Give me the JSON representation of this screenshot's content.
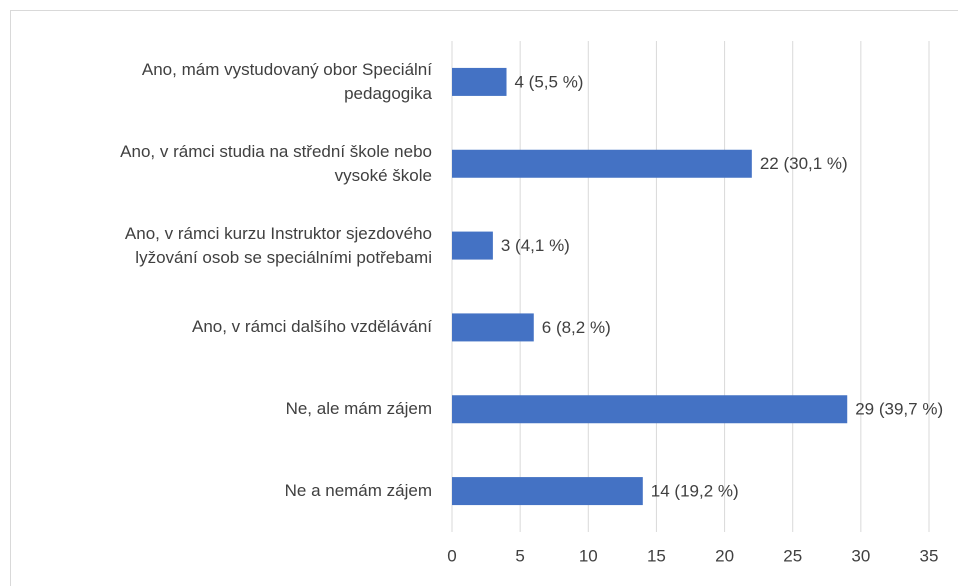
{
  "chart_data": {
    "type": "bar",
    "orientation": "horizontal",
    "categories": [
      "Ano, mám vystudovaný obor Speciální\npedagogika",
      "Ano, v rámci studia na střední škole nebo\nvysoké škole",
      "Ano, v rámci kurzu Instruktor sjezdového\nlyžování osob se speciálními potřebami",
      "Ano, v rámci dalšího vzdělávání",
      "Ne, ale mám zájem",
      "Ne a nemám zájem"
    ],
    "values": [
      4,
      22,
      3,
      6,
      29,
      14
    ],
    "value_labels": [
      "4 (5,5 %)",
      "22 (30,1 %)",
      "3 (4,1 %)",
      "6 (8,2 %)",
      "29 (39,7 %)",
      "14 (19,2 %)"
    ],
    "color": "#4472c4",
    "xlim": [
      0,
      35
    ],
    "xticks": [
      0,
      5,
      10,
      15,
      20,
      25,
      30,
      35
    ],
    "grid": true
  }
}
